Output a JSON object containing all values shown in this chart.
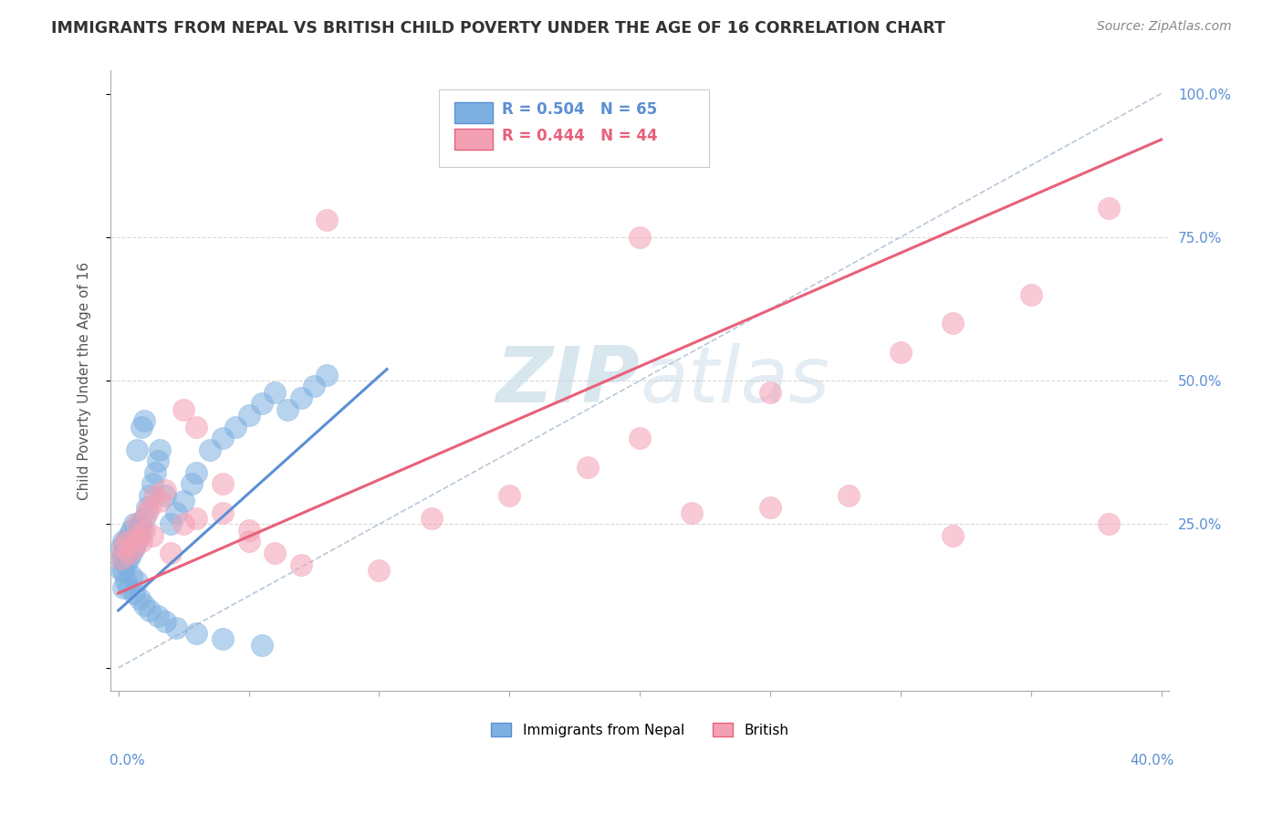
{
  "title": "IMMIGRANTS FROM NEPAL VS BRITISH CHILD POVERTY UNDER THE AGE OF 16 CORRELATION CHART",
  "source": "Source: ZipAtlas.com",
  "ylabel": "Child Poverty Under the Age of 16",
  "xmin": 0.0,
  "xmax": 0.4,
  "ymin": 0.0,
  "ymax": 1.0,
  "ytick_vals": [
    0.0,
    0.25,
    0.5,
    0.75,
    1.0
  ],
  "ytick_labels": [
    "",
    "25.0%",
    "50.0%",
    "75.0%",
    "100.0%"
  ],
  "corr_blue_R": 0.504,
  "corr_blue_N": 65,
  "corr_pink_R": 0.444,
  "corr_pink_N": 44,
  "blue_color": "#5b8fd4",
  "pink_color": "#e8607a",
  "blue_scatter_color": "#7db0e0",
  "pink_scatter_color": "#f4a0b4",
  "ref_line_color": "#b8c8d8",
  "watermark_color": "#c8dce8",
  "title_color": "#333333",
  "source_color": "#888888",
  "grid_color": "#d8d8d8",
  "axis_color": "#aaaaaa",
  "blue_line_x": [
    0.0,
    0.103
  ],
  "blue_line_y": [
    0.1,
    0.52
  ],
  "pink_line_x": [
    0.0,
    0.4
  ],
  "pink_line_y": [
    0.13,
    0.92
  ],
  "blue_points_x": [
    0.001,
    0.001,
    0.001,
    0.002,
    0.002,
    0.002,
    0.002,
    0.003,
    0.003,
    0.003,
    0.003,
    0.004,
    0.004,
    0.004,
    0.005,
    0.005,
    0.005,
    0.006,
    0.006,
    0.006,
    0.007,
    0.007,
    0.008,
    0.008,
    0.009,
    0.009,
    0.01,
    0.01,
    0.011,
    0.012,
    0.013,
    0.014,
    0.015,
    0.016,
    0.018,
    0.02,
    0.022,
    0.025,
    0.028,
    0.03,
    0.035,
    0.04,
    0.045,
    0.05,
    0.055,
    0.06,
    0.065,
    0.07,
    0.075,
    0.08,
    0.003,
    0.005,
    0.007,
    0.002,
    0.004,
    0.006,
    0.008,
    0.01,
    0.012,
    0.015,
    0.018,
    0.022,
    0.03,
    0.04,
    0.055
  ],
  "blue_points_y": [
    0.17,
    0.19,
    0.21,
    0.17,
    0.19,
    0.2,
    0.22,
    0.18,
    0.2,
    0.21,
    0.22,
    0.19,
    0.21,
    0.23,
    0.2,
    0.22,
    0.24,
    0.21,
    0.23,
    0.25,
    0.22,
    0.38,
    0.23,
    0.25,
    0.24,
    0.42,
    0.26,
    0.43,
    0.28,
    0.3,
    0.32,
    0.34,
    0.36,
    0.38,
    0.3,
    0.25,
    0.27,
    0.29,
    0.32,
    0.34,
    0.38,
    0.4,
    0.42,
    0.44,
    0.46,
    0.48,
    0.45,
    0.47,
    0.49,
    0.51,
    0.15,
    0.16,
    0.15,
    0.14,
    0.14,
    0.13,
    0.12,
    0.11,
    0.1,
    0.09,
    0.08,
    0.07,
    0.06,
    0.05,
    0.04
  ],
  "pink_points_x": [
    0.001,
    0.002,
    0.003,
    0.004,
    0.005,
    0.006,
    0.007,
    0.008,
    0.009,
    0.01,
    0.011,
    0.012,
    0.013,
    0.014,
    0.016,
    0.018,
    0.02,
    0.025,
    0.03,
    0.04,
    0.05,
    0.06,
    0.07,
    0.08,
    0.1,
    0.12,
    0.15,
    0.18,
    0.2,
    0.22,
    0.25,
    0.28,
    0.3,
    0.32,
    0.35,
    0.38,
    0.025,
    0.03,
    0.04,
    0.05,
    0.2,
    0.25,
    0.32,
    0.38
  ],
  "pink_points_y": [
    0.19,
    0.21,
    0.22,
    0.2,
    0.22,
    0.21,
    0.25,
    0.23,
    0.22,
    0.24,
    0.27,
    0.28,
    0.23,
    0.3,
    0.29,
    0.31,
    0.2,
    0.25,
    0.26,
    0.27,
    0.24,
    0.2,
    0.18,
    0.78,
    0.17,
    0.26,
    0.3,
    0.35,
    0.4,
    0.27,
    0.28,
    0.3,
    0.55,
    0.6,
    0.65,
    0.8,
    0.45,
    0.42,
    0.32,
    0.22,
    0.75,
    0.48,
    0.23,
    0.25
  ]
}
